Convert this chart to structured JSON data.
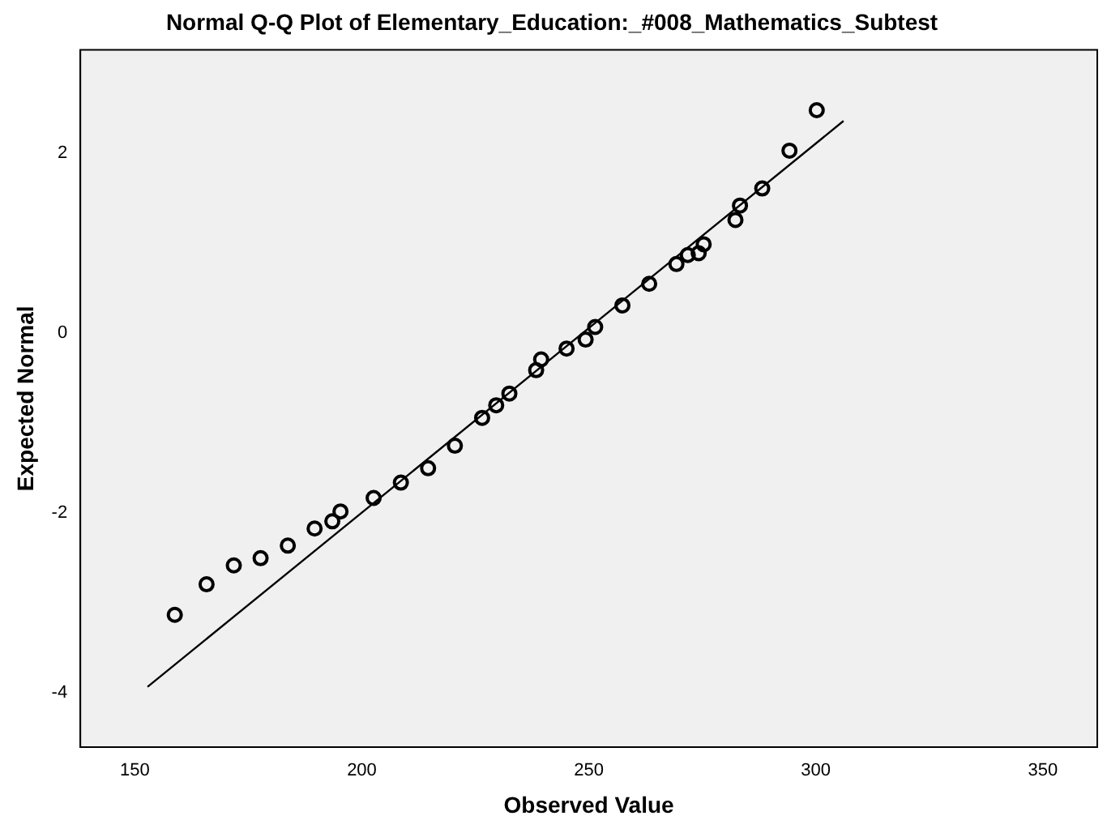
{
  "chart_data": {
    "type": "scatter",
    "title": "Normal Q-Q Plot of Elementary_Education:_#008_Mathematics_Subtest",
    "xlabel": "Observed Value",
    "ylabel": "Expected Normal",
    "xlim": [
      138,
      362
    ],
    "xticks": [
      150,
      200,
      250,
      300,
      350
    ],
    "ylim": [
      -4.6,
      3.15
    ],
    "yticks": [
      -4,
      -2,
      0,
      2
    ],
    "grid": false,
    "legend": false,
    "series": [
      {
        "type": "scatter",
        "marker": "circle",
        "color": "#000000",
        "x": [
          158.8,
          165.8,
          171.8,
          177.7,
          183.7,
          189.6,
          193.5,
          195.3,
          202.6,
          208.6,
          214.6,
          220.5,
          226.5,
          229.6,
          232.5,
          238.4,
          239.5,
          245.1,
          249.3,
          251.4,
          257.4,
          263.3,
          269.3,
          271.8,
          274.2,
          275.3,
          282.3,
          283.3,
          288.2,
          294.2,
          300.2
        ],
        "values": [
          -3.13,
          -2.79,
          -2.58,
          -2.5,
          -2.36,
          -2.17,
          -2.09,
          -1.98,
          -1.83,
          -1.66,
          -1.5,
          -1.25,
          -0.94,
          -0.8,
          -0.67,
          -0.41,
          -0.29,
          -0.17,
          -0.07,
          0.07,
          0.31,
          0.55,
          0.77,
          0.87,
          0.89,
          0.99,
          1.26,
          1.42,
          1.61,
          2.03,
          2.48
        ]
      },
      {
        "type": "line",
        "marker": "none",
        "color": "#000000",
        "x": [
          152.8,
          306.1
        ],
        "values": [
          -3.93,
          2.36
        ]
      }
    ]
  }
}
